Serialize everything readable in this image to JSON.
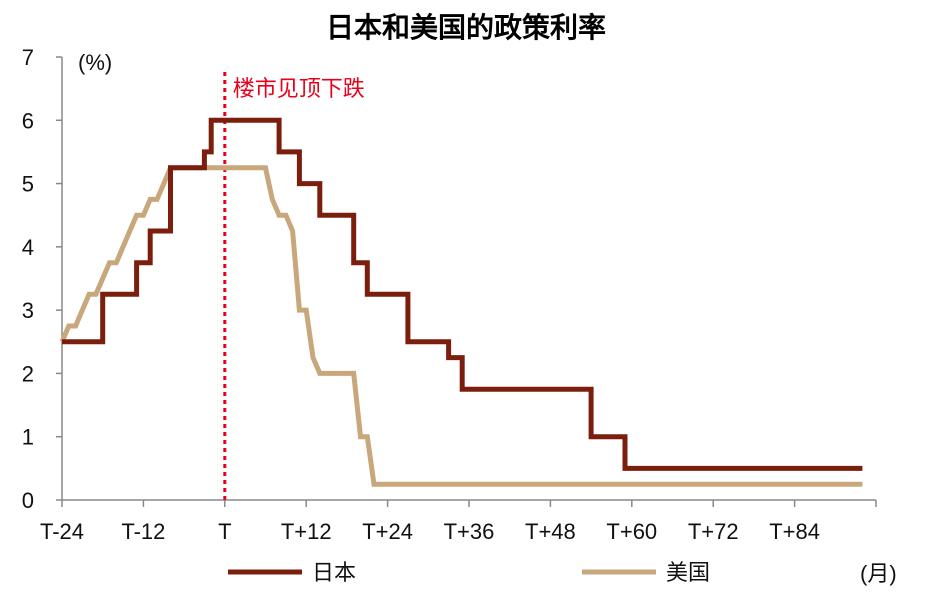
{
  "chart_data": {
    "type": "line",
    "title": "日本和美国的政策利率",
    "y_unit": "(%)",
    "x_unit": "(月)",
    "ylim": [
      0,
      7
    ],
    "y_ticks": [
      "0",
      "1",
      "2",
      "3",
      "4",
      "5",
      "6",
      "7"
    ],
    "xlim": [
      -24,
      96
    ],
    "x_ticks": [
      {
        "value": -24,
        "label": "T-24"
      },
      {
        "value": -12,
        "label": "T-12"
      },
      {
        "value": 0,
        "label": "T"
      },
      {
        "value": 12,
        "label": "T+12"
      },
      {
        "value": 24,
        "label": "T+24"
      },
      {
        "value": 36,
        "label": "T+36"
      },
      {
        "value": 48,
        "label": "T+48"
      },
      {
        "value": 60,
        "label": "T+60"
      },
      {
        "value": 72,
        "label": "T+72"
      },
      {
        "value": 84,
        "label": "T+84"
      }
    ],
    "annotation": {
      "x": 0,
      "label": "楼市见顶下跌",
      "color": "#e8001c"
    },
    "legend_position": "bottom",
    "series": [
      {
        "name": "日本",
        "color": "#7b1e0e",
        "x": [
          -24,
          -18,
          -18,
          -13,
          -13,
          -11,
          -11,
          -10,
          -10,
          -8,
          -8,
          -7,
          -7,
          -3,
          -3,
          -2,
          -2,
          8,
          8,
          11,
          11,
          14,
          14,
          17,
          17,
          19,
          19,
          21,
          21,
          27,
          27,
          33,
          33,
          35,
          35,
          54,
          54,
          59,
          59,
          94
        ],
        "y": [
          2.5,
          2.5,
          3.25,
          3.25,
          3.75,
          3.75,
          4.25,
          4.25,
          4.25,
          4.25,
          5.25,
          5.25,
          5.25,
          5.25,
          5.5,
          5.5,
          6.0,
          6.0,
          5.5,
          5.5,
          5.0,
          5.0,
          4.5,
          4.5,
          4.5,
          4.5,
          3.75,
          3.75,
          3.25,
          3.25,
          2.5,
          2.5,
          2.25,
          2.25,
          1.75,
          1.75,
          1.0,
          1.0,
          0.5,
          0.5
        ]
      },
      {
        "name": "美国",
        "color": "#c9a77c",
        "x": [
          -24,
          -23,
          -22,
          -21,
          -20,
          -19,
          -18,
          -17,
          -16,
          -15,
          -14,
          -13,
          -12,
          -11,
          -10,
          -9,
          -8,
          -7,
          6,
          7,
          8,
          9,
          10,
          11,
          12,
          13,
          14,
          15,
          19,
          20,
          21,
          22,
          94
        ],
        "y": [
          2.5,
          2.75,
          2.75,
          3.0,
          3.25,
          3.25,
          3.5,
          3.75,
          3.75,
          4.0,
          4.25,
          4.5,
          4.5,
          4.75,
          4.75,
          5.0,
          5.25,
          5.25,
          5.25,
          4.75,
          4.5,
          4.5,
          4.25,
          3.0,
          3.0,
          2.25,
          2.0,
          2.0,
          2.0,
          1.0,
          1.0,
          0.25,
          0.25
        ]
      }
    ]
  }
}
